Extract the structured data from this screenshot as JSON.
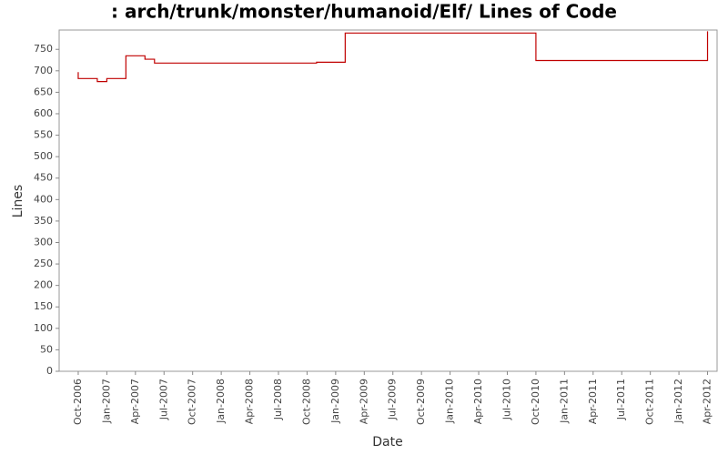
{
  "chart_data": {
    "type": "step",
    "title": ": arch/trunk/monster/humanoid/Elf/ Lines of Code",
    "x_label": "Date",
    "y_label": "Lines",
    "series": [
      {
        "name": "Lines",
        "color": "#c00000",
        "x": [
          "2006-10",
          "2006-10",
          "2006-12",
          "2007-01",
          "2007-03",
          "2007-05",
          "2007-06",
          "2008-11",
          "2009-02",
          "2010-10",
          "2012-04"
        ],
        "values": [
          697,
          682,
          675,
          682,
          735,
          727,
          718,
          720,
          788,
          724,
          792
        ]
      }
    ],
    "xlim": [
      "2006-08",
      "2012-05"
    ],
    "xticks": [
      {
        "value": "2006-10",
        "label": "Oct-2006"
      },
      {
        "value": "2007-01",
        "label": "Jan-2007"
      },
      {
        "value": "2007-04",
        "label": "Apr-2007"
      },
      {
        "value": "2007-07",
        "label": "Jul-2007"
      },
      {
        "value": "2007-10",
        "label": "Oct-2007"
      },
      {
        "value": "2008-01",
        "label": "Jan-2008"
      },
      {
        "value": "2008-04",
        "label": "Apr-2008"
      },
      {
        "value": "2008-07",
        "label": "Jul-2008"
      },
      {
        "value": "2008-10",
        "label": "Oct-2008"
      },
      {
        "value": "2009-01",
        "label": "Jan-2009"
      },
      {
        "value": "2009-04",
        "label": "Apr-2009"
      },
      {
        "value": "2009-07",
        "label": "Jul-2009"
      },
      {
        "value": "2009-10",
        "label": "Oct-2009"
      },
      {
        "value": "2010-01",
        "label": "Jan-2010"
      },
      {
        "value": "2010-04",
        "label": "Apr-2010"
      },
      {
        "value": "2010-07",
        "label": "Jul-2010"
      },
      {
        "value": "2010-10",
        "label": "Oct-2010"
      },
      {
        "value": "2011-01",
        "label": "Jan-2011"
      },
      {
        "value": "2011-04",
        "label": "Apr-2011"
      },
      {
        "value": "2011-07",
        "label": "Jul-2011"
      },
      {
        "value": "2011-10",
        "label": "Oct-2011"
      },
      {
        "value": "2012-01",
        "label": "Jan-2012"
      },
      {
        "value": "2012-04",
        "label": "Apr-2012"
      }
    ],
    "ylim": [
      0,
      795
    ],
    "yticks": [
      0,
      50,
      100,
      150,
      200,
      250,
      300,
      350,
      400,
      450,
      500,
      550,
      600,
      650,
      700,
      750
    ],
    "grid": false
  }
}
